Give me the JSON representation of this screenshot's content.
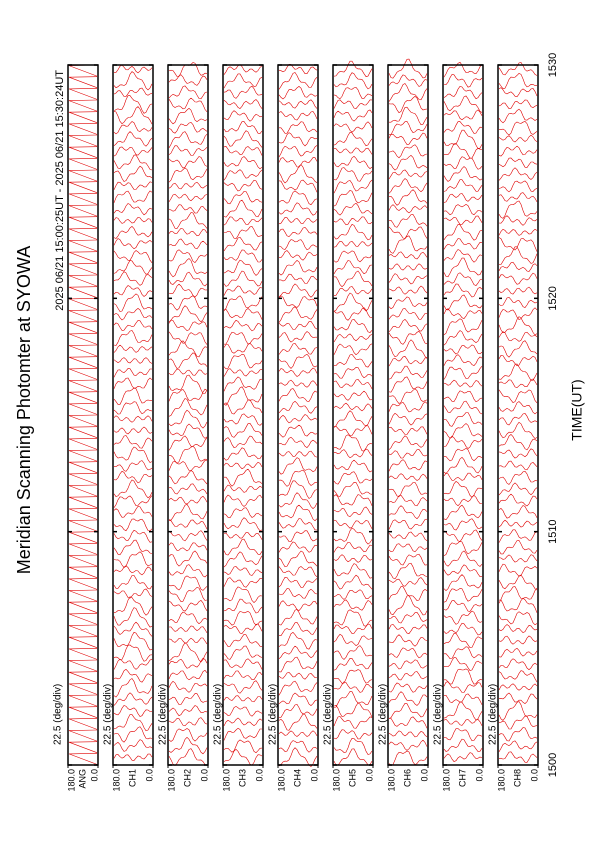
{
  "chart_data": {
    "type": "line",
    "title": "Meridian Scanning Photomter at SYOWA",
    "subtitle": "2025 06/21 15:00:25UT - 2025 06/21 15:30:24UT",
    "x_label": "TIME(UT)",
    "scale_label": "22.5 (deg/div)",
    "xlim": [
      1500,
      1530
    ],
    "xticks": [
      1500,
      1510,
      1520,
      1530
    ],
    "ylim": [
      0,
      180
    ],
    "yticks": [
      {
        "value": 0,
        "label": "0.0"
      },
      {
        "value": 180,
        "label": "180.0"
      }
    ],
    "color": "#e00000",
    "panels": [
      "ANG",
      "CH1",
      "CH2",
      "CH3",
      "CH4",
      "CH5",
      "CH6",
      "CH7",
      "CH8"
    ]
  }
}
